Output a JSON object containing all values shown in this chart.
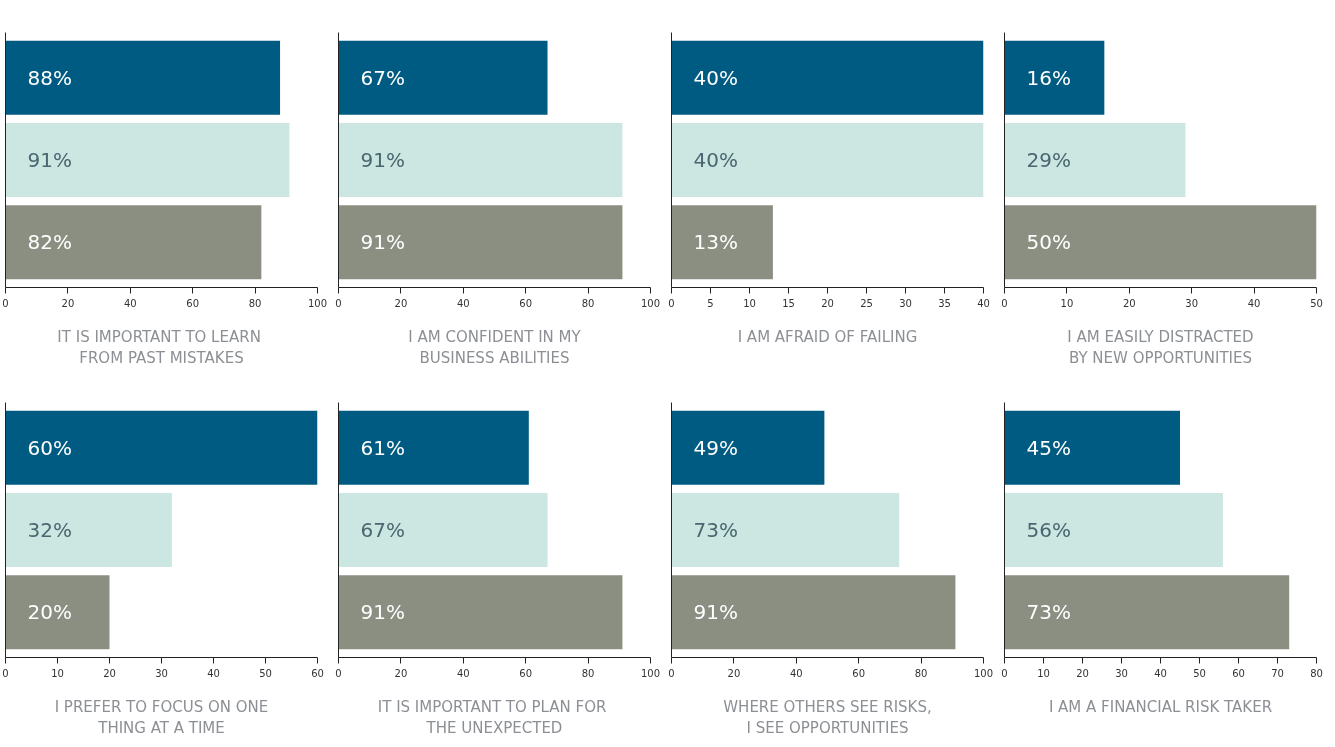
{
  "chart_data": [
    {
      "type": "bar",
      "orientation": "horizontal",
      "categories": [
        null,
        null,
        null
      ],
      "values": [
        88,
        91,
        82
      ],
      "colors": [
        "#005b82",
        "#cce6e1",
        "#8a8f82"
      ],
      "value_labels": [
        "88%",
        "91%",
        "82%"
      ],
      "xlabel": "IT IS IMPORTANT  TO LEARN\nFROM PAST MISTAKES",
      "xlim": [
        0,
        100
      ],
      "xticks": [
        0,
        20,
        40,
        60,
        80,
        100
      ],
      "tick_labels": "x",
      "grid": false
    },
    {
      "type": "bar",
      "orientation": "horizontal",
      "categories": [
        null,
        null,
        null
      ],
      "values": [
        67,
        91,
        91
      ],
      "colors": [
        "#005b82",
        "#cce6e1",
        "#8a8f82"
      ],
      "value_labels": [
        "67%",
        "91%",
        "91%"
      ],
      "xlabel": "I AM CONFIDENT IN MY\nBUSINESS ABILITIES",
      "xlim": [
        0,
        100
      ],
      "xticks": [
        0,
        20,
        40,
        60,
        80,
        100
      ],
      "tick_labels": "x",
      "grid": false
    },
    {
      "type": "bar",
      "orientation": "horizontal",
      "categories": [
        null,
        null,
        null
      ],
      "values": [
        40,
        40,
        13
      ],
      "colors": [
        "#005b82",
        "#cce6e1",
        "#8a8f82"
      ],
      "value_labels": [
        "40%",
        "40%",
        "13%"
      ],
      "xlabel": "I AM AFRAID OF FAILING",
      "xlim": [
        0,
        40
      ],
      "xticks": [
        0,
        5,
        10,
        15,
        20,
        25,
        30,
        35,
        40
      ],
      "tick_labels": "x",
      "grid": false
    },
    {
      "type": "bar",
      "orientation": "horizontal",
      "categories": [
        null,
        null,
        null
      ],
      "values": [
        16,
        29,
        50
      ],
      "colors": [
        "#005b82",
        "#cce6e1",
        "#8a8f82"
      ],
      "value_labels": [
        "16%",
        "29%",
        "50%"
      ],
      "xlabel": "I AM EASILY DISTRACTED\nBY NEW OPPORTUNITIES",
      "xlim": [
        0,
        50
      ],
      "xticks": [
        0,
        10,
        20,
        30,
        40,
        50
      ],
      "tick_labels": "x",
      "grid": false
    },
    {
      "type": "bar",
      "orientation": "horizontal",
      "categories": [
        null,
        null,
        null
      ],
      "values": [
        60,
        32,
        20
      ],
      "colors": [
        "#005b82",
        "#cce6e1",
        "#8a8f82"
      ],
      "value_labels": [
        "60%",
        "32%",
        "20%"
      ],
      "xlabel": "I PREFER TO FOCUS ON ONE\nTHING AT A TIME",
      "xlim": [
        0,
        60
      ],
      "xticks": [
        0,
        10,
        20,
        30,
        40,
        50,
        60
      ],
      "tick_labels": "x",
      "grid": false
    },
    {
      "type": "bar",
      "orientation": "horizontal",
      "categories": [
        null,
        null,
        null
      ],
      "values": [
        61,
        67,
        91
      ],
      "colors": [
        "#005b82",
        "#cce6e1",
        "#8a8f82"
      ],
      "value_labels": [
        "61%",
        "67%",
        "91%"
      ],
      "xlabel": "IT IS IMPORTANT  TO PLAN FOR\nTHE UNEXPECTED",
      "xlim": [
        0,
        100
      ],
      "xticks": [
        0,
        20,
        40,
        60,
        80,
        100
      ],
      "tick_labels": "x",
      "grid": false
    },
    {
      "type": "bar",
      "orientation": "horizontal",
      "categories": [
        null,
        null,
        null
      ],
      "values": [
        49,
        73,
        91
      ],
      "colors": [
        "#005b82",
        "#cce6e1",
        "#8a8f82"
      ],
      "value_labels": [
        "49%",
        "73%",
        "91%"
      ],
      "xlabel": "WHERE OTHERS SEE RISKS,\nI SEE OPPORTUNITIES",
      "xlim": [
        0,
        100
      ],
      "xticks": [
        0,
        20,
        40,
        60,
        80,
        100
      ],
      "tick_labels": "x",
      "grid": false
    },
    {
      "type": "bar",
      "orientation": "horizontal",
      "categories": [
        null,
        null,
        null
      ],
      "values": [
        45,
        56,
        73
      ],
      "colors": [
        "#005b82",
        "#cce6e1",
        "#8a8f82"
      ],
      "value_labels": [
        "45%",
        "56%",
        "73%"
      ],
      "xlabel": "I AM A FINANCIAL RISK TAKER",
      "xlim": [
        0,
        80
      ],
      "xticks": [
        0,
        10,
        20,
        30,
        40,
        50,
        60,
        70,
        80
      ],
      "tick_labels": "x",
      "grid": false
    }
  ]
}
